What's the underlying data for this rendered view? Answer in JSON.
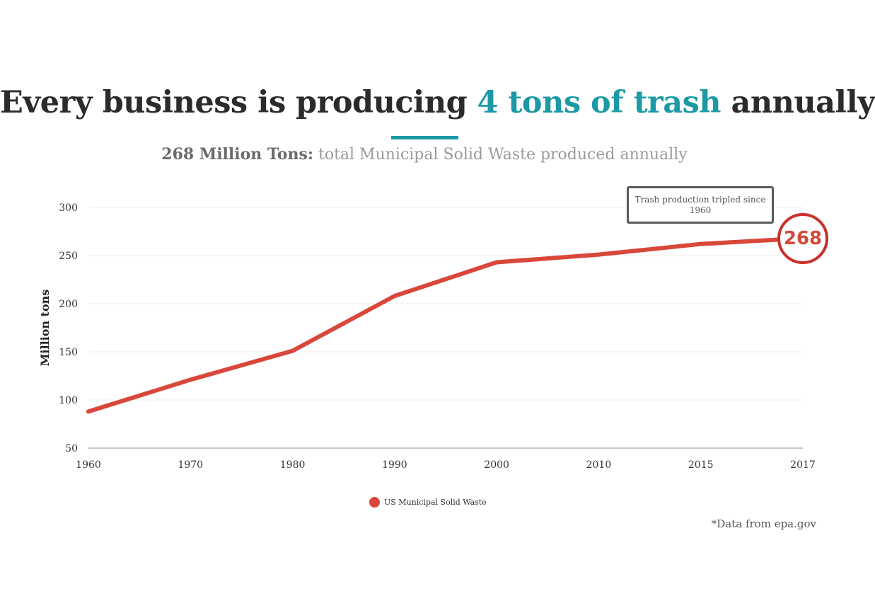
{
  "header": {
    "title_prefix": "Every business is producing ",
    "title_accent": "4 tons of trash",
    "title_suffix": " annually",
    "subtitle_strong": "268 Million Tons:",
    "subtitle_rest": " total Municipal Solid Waste produced annually"
  },
  "colors": {
    "accent": "#1b9aa5",
    "line": "#d9473b",
    "badge_border": "#c9302c"
  },
  "callout": {
    "text": "Trash production tripled since 1960"
  },
  "badge": {
    "value": "268"
  },
  "source_note": "*Data from epa.gov",
  "chart_data": {
    "type": "line",
    "title": "Every business is producing 4 tons of trash annually",
    "subtitle": "268 Million Tons: total Municipal Solid Waste produced annually",
    "xlabel": "",
    "ylabel": "Million tons",
    "x_categories": [
      "1960",
      "1970",
      "1980",
      "1990",
      "2000",
      "2010",
      "2015",
      "2017"
    ],
    "y_ticks": [
      50,
      100,
      150,
      200,
      250,
      300
    ],
    "ylim": [
      50,
      300
    ],
    "grid": true,
    "legend_position": "bottom",
    "series": [
      {
        "name": "US Municipal Solid Waste",
        "color": "#d9473b",
        "points": [
          {
            "x": "1960",
            "y": 88
          },
          {
            "x": "1970",
            "y": 121
          },
          {
            "x": "1980",
            "y": 151
          },
          {
            "x": "1990",
            "y": 208
          },
          {
            "x": "2000",
            "y": 243
          },
          {
            "x": "2010",
            "y": 251
          },
          {
            "x": "2015",
            "y": 262
          },
          {
            "x": "2017",
            "y": 268
          }
        ]
      }
    ],
    "annotations": [
      {
        "text": "Trash production tripled since 1960",
        "x": "2015"
      },
      {
        "text": "268",
        "x": "2017"
      }
    ]
  }
}
